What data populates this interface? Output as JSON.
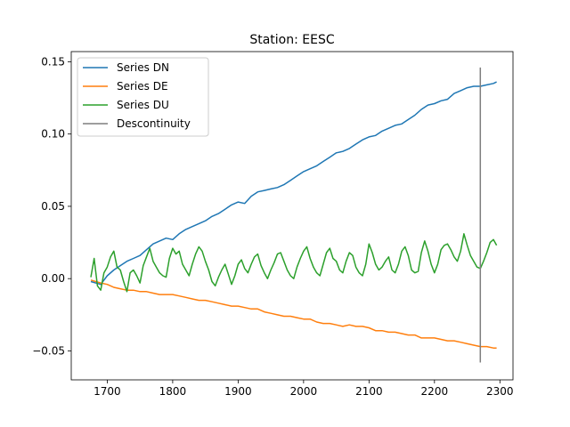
{
  "chart_data": {
    "type": "line",
    "title": "Station: EESC",
    "xlabel": "",
    "ylabel": "",
    "xlim": [
      1645,
      2320
    ],
    "ylim": [
      -0.07,
      0.157
    ],
    "x_ticks": [
      1700,
      1800,
      1900,
      2000,
      2100,
      2200,
      2300
    ],
    "x_tick_labels": [
      "1700",
      "1800",
      "1900",
      "2000",
      "2100",
      "2200",
      "2300"
    ],
    "y_ticks": [
      -0.05,
      0.0,
      0.05,
      0.1,
      0.15
    ],
    "y_tick_labels": [
      "−0.05",
      "0.00",
      "0.05",
      "0.10",
      "0.15"
    ],
    "grid": false,
    "legend_position": "upper-left",
    "series": [
      {
        "name": "Series DN",
        "color": "#1f77b4",
        "x": [
          1675,
          1690,
          1700,
          1710,
          1720,
          1730,
          1740,
          1750,
          1760,
          1770,
          1780,
          1790,
          1800,
          1810,
          1820,
          1830,
          1840,
          1850,
          1860,
          1870,
          1880,
          1890,
          1900,
          1910,
          1920,
          1930,
          1940,
          1950,
          1960,
          1970,
          1980,
          1990,
          2000,
          2010,
          2020,
          2030,
          2040,
          2050,
          2060,
          2070,
          2080,
          2090,
          2100,
          2110,
          2120,
          2130,
          2140,
          2150,
          2160,
          2170,
          2180,
          2190,
          2200,
          2210,
          2220,
          2230,
          2240,
          2250,
          2260,
          2270,
          2280,
          2290,
          2295
        ],
        "y": [
          -0.002,
          -0.004,
          0.002,
          0.006,
          0.009,
          0.012,
          0.014,
          0.016,
          0.02,
          0.024,
          0.026,
          0.028,
          0.027,
          0.031,
          0.034,
          0.036,
          0.038,
          0.04,
          0.043,
          0.045,
          0.048,
          0.051,
          0.053,
          0.052,
          0.057,
          0.06,
          0.061,
          0.062,
          0.063,
          0.065,
          0.068,
          0.071,
          0.074,
          0.076,
          0.078,
          0.081,
          0.084,
          0.087,
          0.088,
          0.09,
          0.093,
          0.096,
          0.098,
          0.099,
          0.102,
          0.104,
          0.106,
          0.107,
          0.11,
          0.113,
          0.117,
          0.12,
          0.121,
          0.123,
          0.124,
          0.128,
          0.13,
          0.132,
          0.133,
          0.133,
          0.134,
          0.135,
          0.136
        ]
      },
      {
        "name": "Series DE",
        "color": "#ff7f0e",
        "x": [
          1675,
          1690,
          1700,
          1710,
          1720,
          1730,
          1740,
          1750,
          1760,
          1770,
          1780,
          1790,
          1800,
          1810,
          1820,
          1830,
          1840,
          1850,
          1860,
          1870,
          1880,
          1890,
          1900,
          1910,
          1920,
          1930,
          1940,
          1950,
          1960,
          1970,
          1980,
          1990,
          2000,
          2010,
          2020,
          2030,
          2040,
          2050,
          2060,
          2070,
          2080,
          2090,
          2100,
          2110,
          2120,
          2130,
          2140,
          2150,
          2160,
          2170,
          2180,
          2190,
          2200,
          2210,
          2220,
          2230,
          2240,
          2250,
          2260,
          2270,
          2280,
          2290,
          2295
        ],
        "y": [
          -0.001,
          -0.003,
          -0.004,
          -0.006,
          -0.007,
          -0.008,
          -0.008,
          -0.009,
          -0.009,
          -0.01,
          -0.011,
          -0.011,
          -0.011,
          -0.012,
          -0.013,
          -0.014,
          -0.015,
          -0.015,
          -0.016,
          -0.017,
          -0.018,
          -0.019,
          -0.019,
          -0.02,
          -0.021,
          -0.021,
          -0.023,
          -0.024,
          -0.025,
          -0.026,
          -0.026,
          -0.027,
          -0.028,
          -0.028,
          -0.03,
          -0.031,
          -0.031,
          -0.032,
          -0.033,
          -0.032,
          -0.033,
          -0.033,
          -0.034,
          -0.036,
          -0.036,
          -0.037,
          -0.037,
          -0.038,
          -0.039,
          -0.039,
          -0.041,
          -0.041,
          -0.041,
          -0.042,
          -0.043,
          -0.043,
          -0.044,
          -0.045,
          -0.046,
          -0.047,
          -0.047,
          -0.048,
          -0.048
        ]
      },
      {
        "name": "Series DU",
        "color": "#2ca02c",
        "x": [
          1675,
          1680,
          1685,
          1690,
          1695,
          1700,
          1705,
          1710,
          1715,
          1720,
          1725,
          1730,
          1735,
          1740,
          1745,
          1750,
          1755,
          1760,
          1765,
          1770,
          1775,
          1780,
          1785,
          1790,
          1795,
          1800,
          1805,
          1810,
          1815,
          1820,
          1825,
          1830,
          1835,
          1840,
          1845,
          1850,
          1855,
          1860,
          1865,
          1870,
          1875,
          1880,
          1885,
          1890,
          1895,
          1900,
          1905,
          1910,
          1915,
          1920,
          1925,
          1930,
          1935,
          1940,
          1945,
          1950,
          1955,
          1960,
          1965,
          1970,
          1975,
          1980,
          1985,
          1990,
          1995,
          2000,
          2005,
          2010,
          2015,
          2020,
          2025,
          2030,
          2035,
          2040,
          2045,
          2050,
          2055,
          2060,
          2065,
          2070,
          2075,
          2080,
          2085,
          2090,
          2095,
          2100,
          2105,
          2110,
          2115,
          2120,
          2125,
          2130,
          2135,
          2140,
          2145,
          2150,
          2155,
          2160,
          2165,
          2170,
          2175,
          2180,
          2185,
          2190,
          2195,
          2200,
          2205,
          2210,
          2215,
          2220,
          2225,
          2230,
          2235,
          2240,
          2245,
          2250,
          2255,
          2260,
          2265,
          2270,
          2275,
          2280,
          2285,
          2290,
          2295
        ],
        "y": [
          0.001,
          0.014,
          -0.005,
          -0.008,
          0.004,
          0.008,
          0.015,
          0.019,
          0.008,
          0.006,
          -0.002,
          -0.009,
          0.004,
          0.006,
          0.002,
          -0.003,
          0.009,
          0.015,
          0.021,
          0.012,
          0.008,
          0.004,
          0.002,
          0.001,
          0.014,
          0.021,
          0.017,
          0.019,
          0.01,
          0.006,
          0.002,
          0.01,
          0.017,
          0.022,
          0.019,
          0.012,
          0.006,
          -0.002,
          -0.005,
          0.001,
          0.006,
          0.01,
          0.003,
          -0.004,
          0.002,
          0.01,
          0.013,
          0.007,
          0.004,
          0.01,
          0.015,
          0.017,
          0.009,
          0.004,
          0.0,
          0.006,
          0.011,
          0.017,
          0.018,
          0.012,
          0.006,
          0.002,
          0.0,
          0.008,
          0.014,
          0.019,
          0.022,
          0.014,
          0.008,
          0.004,
          0.002,
          0.01,
          0.018,
          0.021,
          0.014,
          0.012,
          0.006,
          0.004,
          0.012,
          0.018,
          0.016,
          0.008,
          0.004,
          0.002,
          0.01,
          0.024,
          0.018,
          0.01,
          0.006,
          0.008,
          0.012,
          0.015,
          0.006,
          0.004,
          0.01,
          0.019,
          0.022,
          0.016,
          0.006,
          0.004,
          0.005,
          0.018,
          0.026,
          0.019,
          0.01,
          0.004,
          0.01,
          0.02,
          0.023,
          0.024,
          0.02,
          0.015,
          0.012,
          0.019,
          0.031,
          0.023,
          0.016,
          0.012,
          0.008,
          0.007,
          0.012,
          0.018,
          0.025,
          0.027,
          0.023
        ]
      },
      {
        "name": "Descontinuity",
        "color": "#7f7f7f",
        "x": [
          2270,
          2270
        ],
        "y": [
          -0.058,
          0.146
        ]
      }
    ]
  }
}
